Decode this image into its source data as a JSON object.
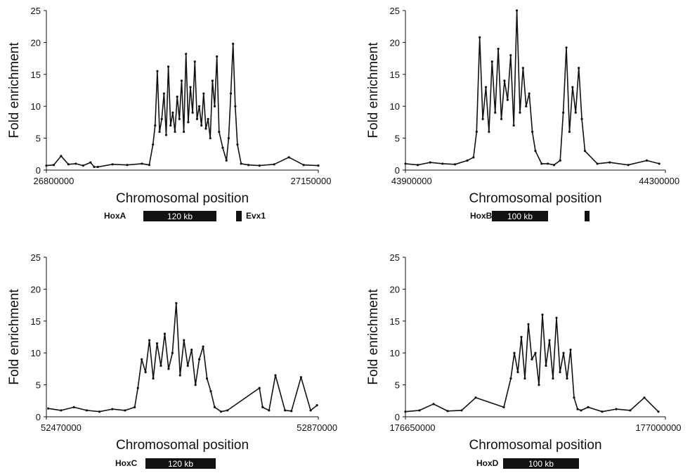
{
  "chart_data": [
    {
      "id": "HoxA",
      "type": "line",
      "xlabel": "Chromosomal position",
      "ylabel": "Fold enrichment",
      "ylim": [
        0,
        25
      ],
      "yticks": [
        "0",
        "5",
        "10",
        "15",
        "20",
        "25"
      ],
      "xtick_labels": [
        "26800000",
        "27150000"
      ],
      "xlim": [
        26790000,
        27160000
      ],
      "grid": false,
      "series": [
        {
          "x": [
            26790000,
            26800000,
            26810000,
            26820000,
            26830000,
            26840000,
            26850000,
            26855000,
            26860000,
            26880000,
            26900000,
            26920000,
            26930000,
            26935000,
            26938000,
            26941000,
            26944000,
            26947000,
            26950000,
            26953000,
            26956000,
            26959000,
            26962000,
            26965000,
            26968000,
            26971000,
            26974000,
            26977000,
            26980000,
            26983000,
            26986000,
            26989000,
            26992000,
            26995000,
            26998000,
            27001000,
            27004000,
            27007000,
            27010000,
            27013000,
            27016000,
            27019000,
            27022000,
            27025000,
            27030000,
            27035000,
            27038000,
            27041000,
            27044000,
            27047000,
            27050000,
            27055000,
            27065000,
            27080000,
            27100000,
            27120000,
            27140000,
            27160000
          ],
          "y": [
            0.7,
            0.8,
            2.2,
            0.9,
            1.0,
            0.7,
            1.2,
            0.5,
            0.5,
            0.9,
            0.8,
            1.0,
            0.8,
            4.0,
            7.0,
            15.5,
            6.0,
            8.0,
            12.0,
            5.5,
            16.2,
            7.0,
            9.0,
            6.0,
            11.5,
            8.0,
            14.0,
            6.0,
            18.2,
            7.5,
            13.0,
            9.0,
            17.0,
            8.0,
            10.0,
            7.0,
            12.0,
            6.5,
            8.0,
            5.0,
            14.0,
            10.0,
            17.8,
            6.0,
            3.5,
            1.5,
            5.0,
            12.0,
            19.8,
            10.0,
            4.0,
            1.0,
            0.8,
            0.7,
            0.9,
            2.0,
            0.8,
            0.7
          ]
        }
      ],
      "annotation": {
        "gene_label": "HoxA",
        "scale_label": "120 kb",
        "extra_label": "Evx1"
      }
    },
    {
      "id": "HoxB",
      "type": "line",
      "xlabel": "Chromosomal position",
      "ylabel": "Fold enrichment",
      "ylim": [
        0,
        25
      ],
      "yticks": [
        "0",
        "5",
        "10",
        "15",
        "20",
        "25"
      ],
      "xtick_labels": [
        "43900000",
        "44300000"
      ],
      "xlim": [
        43890000,
        44310000
      ],
      "grid": false,
      "series": [
        {
          "x": [
            43890000,
            43910000,
            43930000,
            43950000,
            43970000,
            43990000,
            44000000,
            44005000,
            44010000,
            44015000,
            44020000,
            44025000,
            44030000,
            44035000,
            44040000,
            44045000,
            44050000,
            44055000,
            44060000,
            44065000,
            44070000,
            44075000,
            44080000,
            44085000,
            44090000,
            44095000,
            44100000,
            44110000,
            44120000,
            44130000,
            44140000,
            44145000,
            44150000,
            44155000,
            44160000,
            44165000,
            44170000,
            44175000,
            44180000,
            44200000,
            44220000,
            44250000,
            44280000,
            44300000
          ],
          "y": [
            1.0,
            0.8,
            1.2,
            1.0,
            0.9,
            1.5,
            2.0,
            6.0,
            20.8,
            8.0,
            13.0,
            6.0,
            17.0,
            9.0,
            19.0,
            8.0,
            14.0,
            11.0,
            18.0,
            7.0,
            25.0,
            9.0,
            16.0,
            10.0,
            12.0,
            6.0,
            3.0,
            1.0,
            1.0,
            0.8,
            1.5,
            9.0,
            19.2,
            6.0,
            13.0,
            9.0,
            16.0,
            8.0,
            3.0,
            1.0,
            1.2,
            0.8,
            1.5,
            1.0
          ]
        }
      ],
      "annotation": {
        "gene_label": "HoxB",
        "scale_label": "100 kb",
        "extra_label": ""
      }
    },
    {
      "id": "HoxC",
      "type": "line",
      "xlabel": "Chromosomal position",
      "ylabel": "Fold enrichment",
      "ylim": [
        0,
        25
      ],
      "yticks": [
        "0",
        "5",
        "10",
        "15",
        "20",
        "25"
      ],
      "xtick_labels": [
        "52470000",
        "52870000"
      ],
      "xlim": [
        52447000,
        52872000
      ],
      "grid": false,
      "series": [
        {
          "x": [
            52450000,
            52470000,
            52490000,
            52510000,
            52530000,
            52550000,
            52570000,
            52585000,
            52590000,
            52596000,
            52602000,
            52608000,
            52614000,
            52620000,
            52626000,
            52632000,
            52638000,
            52644000,
            52650000,
            52656000,
            52662000,
            52668000,
            52674000,
            52680000,
            52686000,
            52692000,
            52698000,
            52704000,
            52710000,
            52720000,
            52730000,
            52780000,
            52785000,
            52795000,
            52805000,
            52820000,
            52830000,
            52845000,
            52860000,
            52870000
          ],
          "y": [
            1.3,
            1.0,
            1.5,
            1.0,
            0.8,
            1.2,
            1.0,
            1.5,
            4.5,
            9.0,
            7.0,
            12.0,
            6.0,
            11.5,
            8.0,
            13.0,
            7.5,
            10.0,
            17.8,
            6.5,
            12.0,
            8.0,
            10.5,
            5.0,
            9.0,
            11.0,
            6.0,
            4.0,
            1.5,
            0.8,
            1.0,
            4.5,
            1.5,
            1.0,
            6.5,
            1.0,
            0.9,
            6.2,
            1.0,
            1.8
          ]
        }
      ],
      "annotation": {
        "gene_label": "HoxC",
        "scale_label": "120 kb",
        "extra_label": ""
      }
    },
    {
      "id": "HoxD",
      "type": "line",
      "xlabel": "Chromosomal position",
      "ylabel": "Fold enrichment",
      "ylim": [
        0,
        25
      ],
      "yticks": [
        "0",
        "5",
        "10",
        "15",
        "20",
        "25"
      ],
      "xtick_labels": [
        "176650000",
        "177000000"
      ],
      "xlim": [
        176640000,
        177010000
      ],
      "grid": false,
      "series": [
        {
          "x": [
            176640000,
            176660000,
            176680000,
            176700000,
            176720000,
            176740000,
            176780000,
            176790000,
            176795000,
            176800000,
            176805000,
            176810000,
            176815000,
            176820000,
            176825000,
            176830000,
            176835000,
            176840000,
            176845000,
            176850000,
            176855000,
            176860000,
            176865000,
            176870000,
            176875000,
            176880000,
            176885000,
            176890000,
            176900000,
            176920000,
            176940000,
            176960000,
            176980000,
            177000000
          ],
          "y": [
            0.8,
            1.0,
            2.0,
            0.9,
            1.0,
            3.0,
            1.5,
            6.0,
            10.0,
            7.0,
            12.5,
            6.0,
            14.5,
            9.0,
            10.0,
            5.0,
            16.0,
            8.0,
            12.0,
            6.0,
            15.5,
            7.0,
            10.0,
            6.0,
            10.5,
            3.0,
            1.2,
            1.0,
            1.5,
            0.8,
            1.2,
            1.0,
            3.0,
            0.8
          ]
        }
      ],
      "annotation": {
        "gene_label": "HoxD",
        "scale_label": "100 kb",
        "extra_label": ""
      }
    }
  ]
}
